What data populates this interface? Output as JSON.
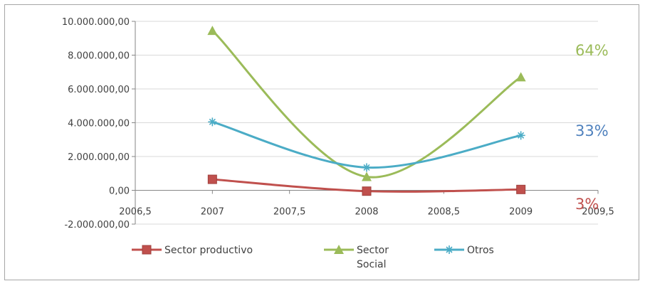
{
  "chart_data": {
    "type": "line",
    "x": [
      2007,
      2008,
      2009
    ],
    "xlim": [
      2006.5,
      2009.5
    ],
    "ylim": [
      -2000000,
      10000000
    ],
    "x_ticks": [
      2006.5,
      2007,
      2007.5,
      2008,
      2008.5,
      2009,
      2009.5
    ],
    "x_tick_labels": [
      "2006,5",
      "2007",
      "2007,5",
      "2008",
      "2008,5",
      "2009",
      "2009,5"
    ],
    "y_ticks": [
      -2000000,
      0,
      2000000,
      4000000,
      6000000,
      8000000,
      10000000
    ],
    "y_tick_labels": [
      "-2.000.000,00",
      "0,00",
      "2.000.000,00",
      "4.000.000,00",
      "6.000.000,00",
      "8.000.000,00",
      "10.000.000,00"
    ],
    "grid": "horizontal",
    "smooth": true,
    "series": [
      {
        "name": "Sector productivo",
        "values": [
          650000,
          -50000,
          50000
        ],
        "color": "#c0504d",
        "marker": "square"
      },
      {
        "name": "Sector Social",
        "values": [
          9450000,
          800000,
          6700000
        ],
        "color": "#9bbb59",
        "marker": "triangle"
      },
      {
        "name": "Otros",
        "values": [
          4050000,
          1350000,
          3250000
        ],
        "color": "#4bacc6",
        "marker": "star"
      }
    ],
    "legend": {
      "position": "bottom",
      "entries": [
        {
          "line1": "Sector productivo",
          "line2": ""
        },
        {
          "line1": "Sector",
          "line2": "Social"
        },
        {
          "line1": "Otros",
          "line2": ""
        }
      ]
    },
    "annotations": [
      {
        "text": "64%",
        "color": "#9bbb59"
      },
      {
        "text": "33%",
        "color": "#4f81bd"
      },
      {
        "text": "3%",
        "color": "#c0504d"
      }
    ]
  }
}
